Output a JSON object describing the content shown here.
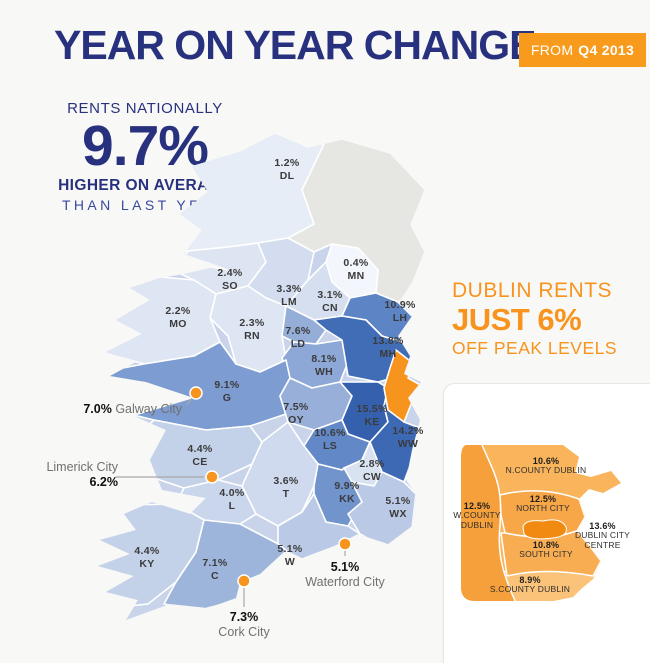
{
  "header": {
    "title": "YEAR ON YEAR CHANGE",
    "badge": {
      "prefix": "FROM",
      "period": "Q4 2013"
    }
  },
  "national": {
    "label": "RENTS NATIONALLY",
    "value": "9.7%",
    "line1": "HIGHER ON AVERAGE",
    "line2": "THAN LAST YEAR"
  },
  "dublin_callout": {
    "line1": "DUBLIN RENTS",
    "line2": "JUST 6%",
    "line3": "OFF PEAK LEVELS"
  },
  "colors": {
    "navy": "#28317e",
    "orange": "#f7941e",
    "badge_orange": "#f89b1c",
    "map_base": "#c9d4ea",
    "northern_ireland": "#e6e6e3"
  },
  "map": {
    "dublin_county_color": "#f7941e",
    "counties": [
      {
        "code": "DL",
        "value": "1.2%",
        "color": "#e7edf7"
      },
      {
        "code": "SO",
        "value": "2.4%",
        "color": "#dee5f2"
      },
      {
        "code": "LM",
        "value": "3.3%",
        "color": "#d3ddef"
      },
      {
        "code": "MN",
        "value": "0.4%",
        "color": "#f3f6fc"
      },
      {
        "code": "CN",
        "value": "3.1%",
        "color": "#d5dff0"
      },
      {
        "code": "LH",
        "value": "10.9%",
        "color": "#5d84c5"
      },
      {
        "code": "MO",
        "value": "2.2%",
        "color": "#dfe6f3"
      },
      {
        "code": "RN",
        "value": "2.3%",
        "color": "#dee6f3"
      },
      {
        "code": "LD",
        "value": "7.6%",
        "color": "#95aed8"
      },
      {
        "code": "WH",
        "value": "8.1%",
        "color": "#8da8d6"
      },
      {
        "code": "MH",
        "value": "13.8%",
        "color": "#416cb6"
      },
      {
        "code": "G",
        "value": "9.1%",
        "color": "#7d9cd1"
      },
      {
        "code": "OY",
        "value": "7.5%",
        "color": "#97afd9"
      },
      {
        "code": "KE",
        "value": "15.5%",
        "color": "#3560ae"
      },
      {
        "code": "WW",
        "value": "14.2%",
        "color": "#3d68b3"
      },
      {
        "code": "LS",
        "value": "10.6%",
        "color": "#6288c7"
      },
      {
        "code": "CE",
        "value": "4.4%",
        "color": "#c3d1e9"
      },
      {
        "code": "CW",
        "value": "2.8%",
        "color": "#d9e2f1"
      },
      {
        "code": "T",
        "value": "3.6%",
        "color": "#cfdaee"
      },
      {
        "code": "KK",
        "value": "9.9%",
        "color": "#7194cd"
      },
      {
        "code": "WX",
        "value": "5.1%",
        "color": "#bac9e5"
      },
      {
        "code": "L",
        "value": "4.0%",
        "color": "#c9d6eb"
      },
      {
        "code": "KY",
        "value": "4.4%",
        "color": "#c3d1e9"
      },
      {
        "code": "C",
        "value": "7.1%",
        "color": "#9db4db"
      },
      {
        "code": "W",
        "value": "5.1%",
        "color": "#bac9e5"
      }
    ],
    "cities": [
      {
        "name": "Galway City",
        "value": "7.0%"
      },
      {
        "name": "Limerick City",
        "value": "6.2%"
      },
      {
        "name": "Waterford City",
        "value": "5.1%"
      },
      {
        "name": "Cork City",
        "value": "7.3%"
      }
    ]
  },
  "dublin_inset": {
    "areas": [
      {
        "id": "n_county",
        "value": "10.6%",
        "name": "N.COUNTY DUBLIN",
        "color": "#f9b45c"
      },
      {
        "id": "north_city",
        "value": "12.5%",
        "name": "NORTH CITY",
        "color": "#f7a748"
      },
      {
        "id": "w_county",
        "value": "12.5%",
        "name": "W.COUNTY DUBLIN",
        "color": "#f5a03a"
      },
      {
        "id": "city_centre",
        "value": "13.6%",
        "name": "DUBLIN CITY CENTRE",
        "color": "#f18a10"
      },
      {
        "id": "south_city",
        "value": "10.8%",
        "name": "SOUTH CITY",
        "color": "#f8ad52"
      },
      {
        "id": "s_county",
        "value": "8.9%",
        "name": "S.COUNTY DUBLIN",
        "color": "#fbc379"
      }
    ]
  },
  "chart_data": {
    "type": "heatmap",
    "subtype": "choropleth-map",
    "title": "YEAR ON YEAR CHANGE",
    "period": "FROM Q4 2013",
    "national_average_pct": 9.7,
    "dublin_off_peak_pct": 6,
    "regions": [
      {
        "code": "DL",
        "pct": 1.2
      },
      {
        "code": "SO",
        "pct": 2.4
      },
      {
        "code": "LM",
        "pct": 3.3
      },
      {
        "code": "MN",
        "pct": 0.4
      },
      {
        "code": "CN",
        "pct": 3.1
      },
      {
        "code": "LH",
        "pct": 10.9
      },
      {
        "code": "MO",
        "pct": 2.2
      },
      {
        "code": "RN",
        "pct": 2.3
      },
      {
        "code": "LD",
        "pct": 7.6
      },
      {
        "code": "WH",
        "pct": 8.1
      },
      {
        "code": "MH",
        "pct": 13.8
      },
      {
        "code": "G",
        "pct": 9.1
      },
      {
        "code": "OY",
        "pct": 7.5
      },
      {
        "code": "KE",
        "pct": 15.5
      },
      {
        "code": "WW",
        "pct": 14.2
      },
      {
        "code": "LS",
        "pct": 10.6
      },
      {
        "code": "CE",
        "pct": 4.4
      },
      {
        "code": "CW",
        "pct": 2.8
      },
      {
        "code": "T",
        "pct": 3.6
      },
      {
        "code": "KK",
        "pct": 9.9
      },
      {
        "code": "WX",
        "pct": 5.1
      },
      {
        "code": "L",
        "pct": 4.0
      },
      {
        "code": "KY",
        "pct": 4.4
      },
      {
        "code": "C",
        "pct": 7.1
      },
      {
        "code": "W",
        "pct": 5.1
      }
    ],
    "cities": [
      {
        "name": "Galway City",
        "pct": 7.0
      },
      {
        "name": "Limerick City",
        "pct": 6.2
      },
      {
        "name": "Waterford City",
        "pct": 5.1
      },
      {
        "name": "Cork City",
        "pct": 7.3
      }
    ],
    "dublin_areas": [
      {
        "name": "N.COUNTY DUBLIN",
        "pct": 10.6
      },
      {
        "name": "NORTH CITY",
        "pct": 12.5
      },
      {
        "name": "W.COUNTY DUBLIN",
        "pct": 12.5
      },
      {
        "name": "DUBLIN CITY CENTRE",
        "pct": 13.6
      },
      {
        "name": "SOUTH CITY",
        "pct": 10.8
      },
      {
        "name": "S.COUNTY DUBLIN",
        "pct": 8.9
      }
    ]
  }
}
